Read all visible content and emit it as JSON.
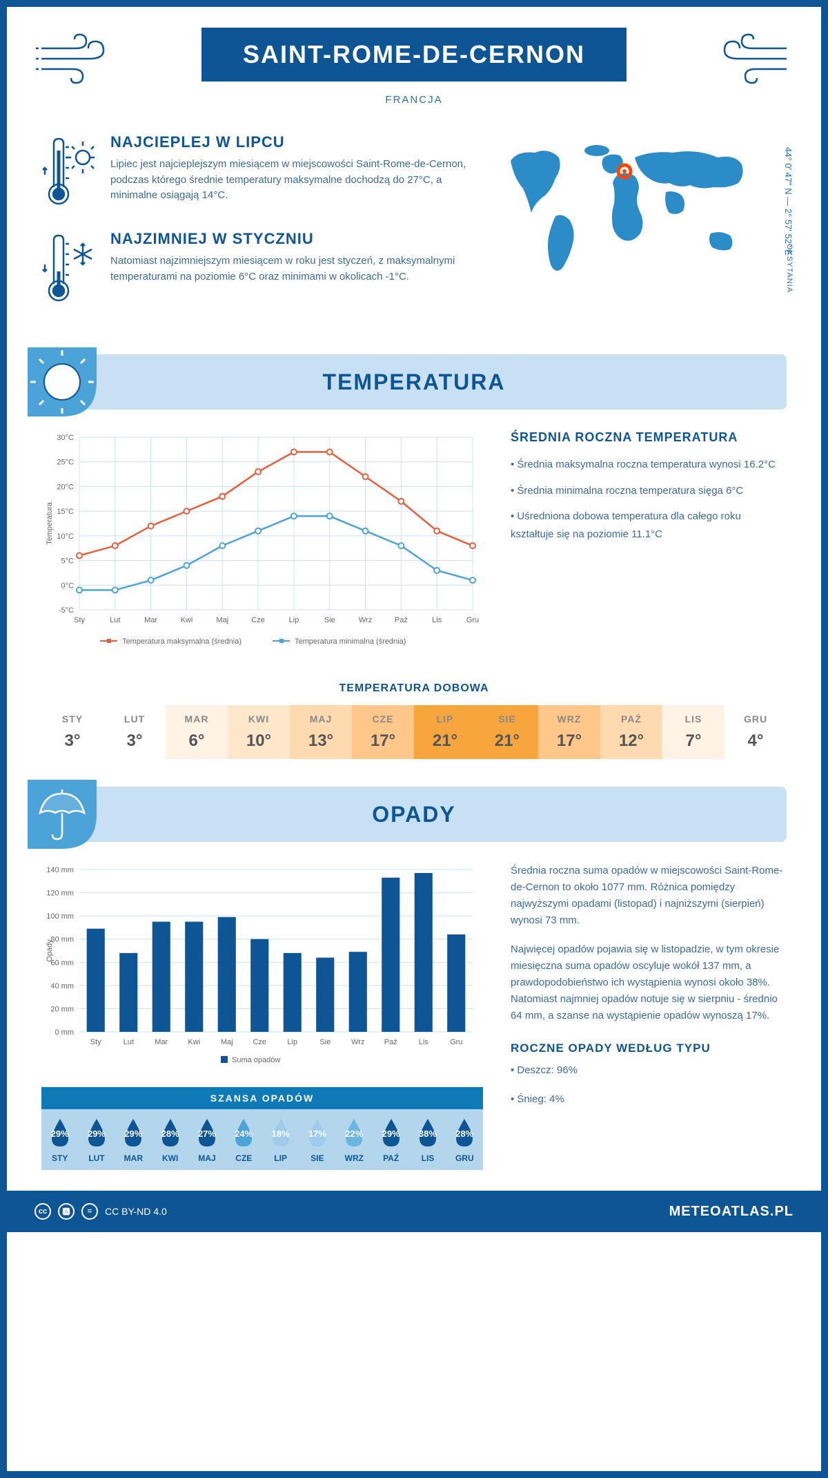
{
  "header": {
    "title": "SAINT-ROME-DE-CERNON",
    "country": "FRANCJA"
  },
  "coords": "44° 0' 47\" N — 2° 57' 52\" E",
  "region": "OKSYTANIA",
  "warmest": {
    "title": "NAJCIEPLEJ W LIPCU",
    "text": "Lipiec jest najcieplejszym miesiącem w miejscowości Saint-Rome-de-Cernon, podczas którego średnie temperatury maksymalne dochodzą do 27°C, a minimalne osiągają 14°C."
  },
  "coldest": {
    "title": "NAJZIMNIEJ W STYCZNIU",
    "text": "Natomiast najzimniejszym miesiącem w roku jest styczeń, z maksymalnymi temperaturami na poziomie 6°C oraz minimami w okolicach -1°C."
  },
  "temp_section": {
    "title": "TEMPERATURA",
    "chart": {
      "months": [
        "Sty",
        "Lut",
        "Mar",
        "Kwi",
        "Maj",
        "Cze",
        "Lip",
        "Sie",
        "Wrz",
        "Paź",
        "Lis",
        "Gru"
      ],
      "max_values": [
        6,
        8,
        12,
        15,
        18,
        23,
        27,
        27,
        22,
        17,
        11,
        8
      ],
      "min_values": [
        -1,
        -1,
        1,
        4,
        8,
        11,
        14,
        14,
        11,
        8,
        3,
        1
      ],
      "max_color": "#e85d3a",
      "min_color": "#4ba3d8",
      "grid_color": "#c8e0f4",
      "ylabel": "Temperatura",
      "ylim": [
        -5,
        30
      ],
      "ytick_step": 5,
      "legend_max": "Temperatura maksymalna (średnia)",
      "legend_min": "Temperatura minimalna (średnia)"
    },
    "stats_title": "ŚREDNIA ROCZNA TEMPERATURA",
    "stats": [
      "• Średnia maksymalna roczna temperatura wynosi 16.2°C",
      "• Średnia minimalna roczna temperatura sięga 6°C",
      "• Uśredniona dobowa temperatura dla całego roku kształtuje się na poziomie 11.1°C"
    ],
    "daily_title": "TEMPERATURA DOBOWA",
    "daily": {
      "months": [
        "STY",
        "LUT",
        "MAR",
        "KWI",
        "MAJ",
        "CZE",
        "LIP",
        "SIE",
        "WRZ",
        "PAŹ",
        "LIS",
        "GRU"
      ],
      "values": [
        "3°",
        "3°",
        "6°",
        "10°",
        "13°",
        "17°",
        "21°",
        "21°",
        "17°",
        "12°",
        "7°",
        "4°"
      ],
      "colors": [
        "#ffffff",
        "#ffffff",
        "#fff3e6",
        "#ffe7cc",
        "#ffdab0",
        "#ffc88a",
        "#f7a63e",
        "#f7a63e",
        "#ffc88a",
        "#ffdab0",
        "#fff3e6",
        "#ffffff"
      ]
    }
  },
  "precip_section": {
    "title": "OPADY",
    "chart": {
      "months": [
        "Sty",
        "Lut",
        "Mar",
        "Kwi",
        "Maj",
        "Cze",
        "Lip",
        "Sie",
        "Wrz",
        "Paź",
        "Lis",
        "Gru"
      ],
      "values": [
        89,
        68,
        95,
        95,
        99,
        80,
        68,
        64,
        69,
        133,
        137,
        84
      ],
      "bar_color": "#0d5594",
      "grid_color": "#c8e0f4",
      "ylabel": "Opady",
      "ylim": [
        0,
        140
      ],
      "ytick_step": 20,
      "legend": "Suma opadów"
    },
    "text1": "Średnia roczna suma opadów w miejscowości Saint-Rome-de-Cernon to około 1077 mm. Różnica pomiędzy najwyższymi opadami (listopad) i najniższymi (sierpień) wynosi 73 mm.",
    "text2": "Najwięcej opadów pojawia się w listopadzie, w tym okresie miesięczna suma opadów oscyluje wokół 137 mm, a prawdopodobieństwo ich wystąpienia wynosi około 38%. Natomiast najmniej opadów notuje się w sierpniu - średnio 64 mm, a szanse na wystąpienie opadów wynoszą 17%.",
    "chance_title": "SZANSA OPADÓW",
    "chance": {
      "months": [
        "STY",
        "LUT",
        "MAR",
        "KWI",
        "MAJ",
        "CZE",
        "LIP",
        "SIE",
        "WRZ",
        "PAŹ",
        "LIS",
        "GRU"
      ],
      "values": [
        "29%",
        "29%",
        "29%",
        "28%",
        "27%",
        "24%",
        "18%",
        "17%",
        "22%",
        "29%",
        "38%",
        "28%"
      ],
      "drop_colors": [
        "#0d5594",
        "#0d5594",
        "#0d5594",
        "#0d5594",
        "#0d5594",
        "#4ba3d8",
        "#9fccea",
        "#9fccea",
        "#6bb5e0",
        "#0d5594",
        "#0d5594",
        "#0d5594"
      ]
    },
    "bytype_title": "ROCZNE OPADY WEDŁUG TYPU",
    "bytype": [
      "• Deszcz: 96%",
      "• Śnieg: 4%"
    ]
  },
  "footer": {
    "license": "CC BY-ND 4.0",
    "site": "METEOATLAS.PL"
  },
  "colors": {
    "primary": "#0d5594",
    "light_blue": "#c8e0f4",
    "mid_blue": "#4ba3d8",
    "marker": "#ff4500"
  }
}
